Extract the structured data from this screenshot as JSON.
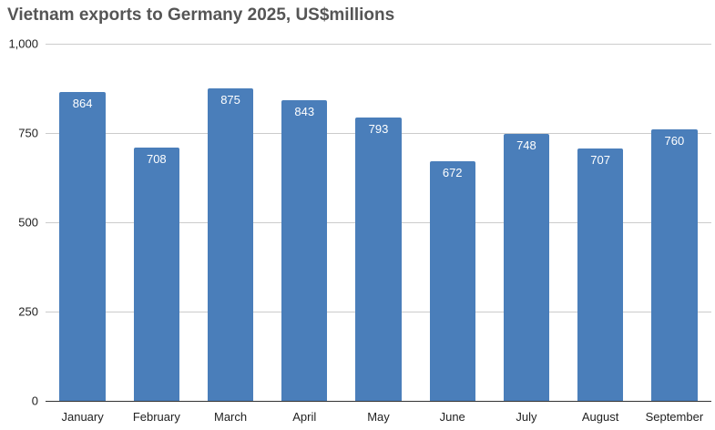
{
  "chart_data": {
    "type": "bar",
    "title": "Vietnam exports to Germany 2025, US$millions",
    "categories": [
      "January",
      "February",
      "March",
      "April",
      "May",
      "June",
      "July",
      "August",
      "September"
    ],
    "values": [
      864,
      708,
      875,
      843,
      793,
      672,
      748,
      707,
      760
    ],
    "xlabel": "",
    "ylabel": "",
    "ylim": [
      0,
      1000
    ],
    "yticks": [
      0,
      250,
      500,
      750,
      1000
    ],
    "ytick_labels": [
      "0",
      "250",
      "500",
      "750",
      "1,000"
    ],
    "grid": true,
    "legend": "none",
    "colors": {
      "bar": "#4a7eba",
      "value_label": "#ffffff",
      "title": "#555555",
      "axis_text": "#222222",
      "gridline": "#cccccc",
      "baseline": "#333333"
    }
  }
}
